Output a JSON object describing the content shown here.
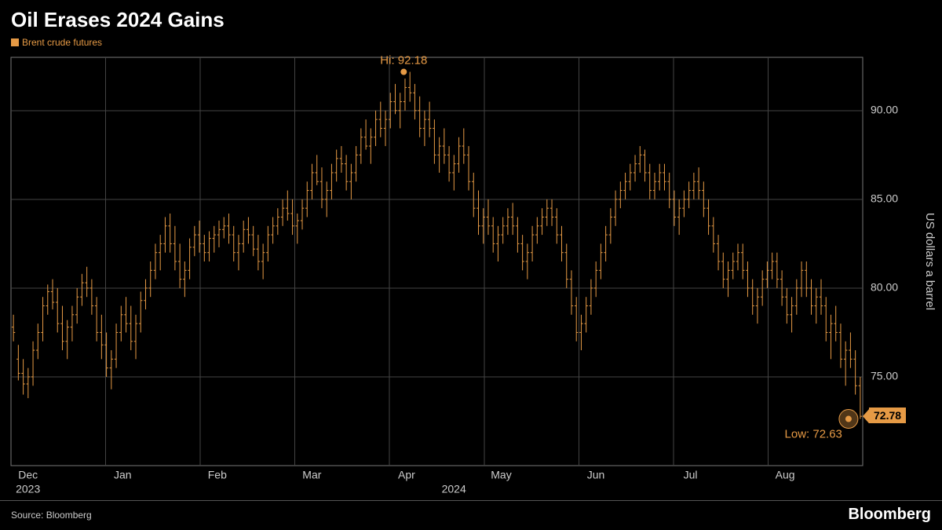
{
  "title": "Oil Erases 2024 Gains",
  "legend": {
    "label": "Brent crude futures",
    "color": "#e69a45"
  },
  "source": "Source: Bloomberg",
  "brand": "Bloomberg",
  "chart": {
    "type": "ohlc",
    "background_color": "#000000",
    "series_color": "#e69a45",
    "grid_color": "#444444",
    "border_color": "#777777",
    "text_color": "#cccccc",
    "ylabel": "US dollars a barrel",
    "y": {
      "min": 70,
      "max": 93,
      "ticks": [
        75,
        80,
        85,
        90
      ]
    },
    "x": {
      "months": [
        "Dec",
        "Jan",
        "Feb",
        "Mar",
        "Apr",
        "May",
        "Jun",
        "Jul",
        "Aug"
      ],
      "year_labels": [
        {
          "text": "2023",
          "at": 0
        },
        {
          "text": "2024",
          "at": 4.5
        }
      ]
    },
    "annotations": {
      "hi": {
        "label": "Hi: 92.18",
        "value": 92.18,
        "x": 4.15
      },
      "low": {
        "label": "Low: 72.63",
        "value": 72.63,
        "x": 8.85
      },
      "current": {
        "label": "72.78",
        "value": 72.78
      }
    },
    "bars": [
      {
        "o": 77.8,
        "h": 78.5,
        "l": 77.0,
        "c": 77.5
      },
      {
        "o": 76.0,
        "h": 76.8,
        "l": 74.8,
        "c": 75.2
      },
      {
        "o": 75.2,
        "h": 76.0,
        "l": 74.0,
        "c": 74.6
      },
      {
        "o": 74.6,
        "h": 75.5,
        "l": 73.8,
        "c": 75.0
      },
      {
        "o": 75.0,
        "h": 77.0,
        "l": 74.5,
        "c": 76.5
      },
      {
        "o": 76.5,
        "h": 78.0,
        "l": 76.0,
        "c": 77.5
      },
      {
        "o": 77.5,
        "h": 79.5,
        "l": 77.0,
        "c": 79.0
      },
      {
        "o": 79.0,
        "h": 80.2,
        "l": 78.5,
        "c": 79.8
      },
      {
        "o": 79.8,
        "h": 80.5,
        "l": 78.8,
        "c": 79.2
      },
      {
        "o": 79.2,
        "h": 80.0,
        "l": 77.5,
        "c": 78.0
      },
      {
        "o": 78.0,
        "h": 79.0,
        "l": 76.5,
        "c": 77.0
      },
      {
        "o": 77.0,
        "h": 78.2,
        "l": 76.0,
        "c": 77.8
      },
      {
        "o": 77.8,
        "h": 79.0,
        "l": 77.0,
        "c": 78.5
      },
      {
        "o": 78.5,
        "h": 80.0,
        "l": 78.0,
        "c": 79.5
      },
      {
        "o": 79.5,
        "h": 80.8,
        "l": 79.0,
        "c": 80.3
      },
      {
        "o": 80.3,
        "h": 81.2,
        "l": 79.5,
        "c": 80.0
      },
      {
        "o": 80.0,
        "h": 80.5,
        "l": 78.5,
        "c": 79.0
      },
      {
        "o": 79.0,
        "h": 79.5,
        "l": 77.0,
        "c": 77.5
      },
      {
        "o": 77.5,
        "h": 78.5,
        "l": 76.0,
        "c": 76.8
      },
      {
        "o": 76.8,
        "h": 77.5,
        "l": 75.0,
        "c": 75.5
      },
      {
        "o": 75.5,
        "h": 76.5,
        "l": 74.3,
        "c": 76.0
      },
      {
        "o": 76.0,
        "h": 78.0,
        "l": 75.5,
        "c": 77.5
      },
      {
        "o": 77.5,
        "h": 79.0,
        "l": 77.0,
        "c": 78.5
      },
      {
        "o": 78.5,
        "h": 79.5,
        "l": 77.5,
        "c": 78.0
      },
      {
        "o": 78.0,
        "h": 79.0,
        "l": 76.5,
        "c": 77.0
      },
      {
        "o": 77.0,
        "h": 78.5,
        "l": 76.0,
        "c": 78.0
      },
      {
        "o": 78.0,
        "h": 79.8,
        "l": 77.5,
        "c": 79.3
      },
      {
        "o": 79.3,
        "h": 80.5,
        "l": 78.8,
        "c": 80.0
      },
      {
        "o": 80.0,
        "h": 81.5,
        "l": 79.5,
        "c": 81.0
      },
      {
        "o": 81.0,
        "h": 82.5,
        "l": 80.5,
        "c": 82.0
      },
      {
        "o": 82.0,
        "h": 83.0,
        "l": 81.0,
        "c": 82.5
      },
      {
        "o": 82.5,
        "h": 84.0,
        "l": 82.0,
        "c": 83.5
      },
      {
        "o": 83.5,
        "h": 84.2,
        "l": 82.0,
        "c": 82.5
      },
      {
        "o": 82.5,
        "h": 83.5,
        "l": 81.0,
        "c": 81.5
      },
      {
        "o": 81.5,
        "h": 82.5,
        "l": 80.0,
        "c": 80.5
      },
      {
        "o": 80.5,
        "h": 81.5,
        "l": 79.5,
        "c": 81.0
      },
      {
        "o": 81.0,
        "h": 82.8,
        "l": 80.5,
        "c": 82.3
      },
      {
        "o": 82.3,
        "h": 83.5,
        "l": 81.8,
        "c": 83.0
      },
      {
        "o": 83.0,
        "h": 83.8,
        "l": 82.0,
        "c": 82.5
      },
      {
        "o": 82.5,
        "h": 83.0,
        "l": 81.5,
        "c": 82.0
      },
      {
        "o": 82.0,
        "h": 83.2,
        "l": 81.5,
        "c": 82.8
      },
      {
        "o": 82.8,
        "h": 83.5,
        "l": 82.0,
        "c": 83.0
      },
      {
        "o": 83.0,
        "h": 83.8,
        "l": 82.3,
        "c": 83.3
      },
      {
        "o": 83.3,
        "h": 84.0,
        "l": 82.8,
        "c": 83.5
      },
      {
        "o": 83.5,
        "h": 84.2,
        "l": 82.5,
        "c": 83.0
      },
      {
        "o": 83.0,
        "h": 83.5,
        "l": 81.5,
        "c": 82.0
      },
      {
        "o": 82.0,
        "h": 83.0,
        "l": 81.0,
        "c": 82.5
      },
      {
        "o": 82.5,
        "h": 83.8,
        "l": 82.0,
        "c": 83.3
      },
      {
        "o": 83.3,
        "h": 84.0,
        "l": 82.5,
        "c": 83.0
      },
      {
        "o": 83.0,
        "h": 83.5,
        "l": 81.8,
        "c": 82.2
      },
      {
        "o": 82.2,
        "h": 83.0,
        "l": 81.0,
        "c": 81.5
      },
      {
        "o": 81.5,
        "h": 82.5,
        "l": 80.5,
        "c": 82.0
      },
      {
        "o": 82.0,
        "h": 83.5,
        "l": 81.5,
        "c": 83.0
      },
      {
        "o": 83.0,
        "h": 84.0,
        "l": 82.5,
        "c": 83.5
      },
      {
        "o": 83.5,
        "h": 84.5,
        "l": 83.0,
        "c": 84.0
      },
      {
        "o": 84.0,
        "h": 85.0,
        "l": 83.5,
        "c": 84.5
      },
      {
        "o": 84.5,
        "h": 85.5,
        "l": 83.8,
        "c": 84.2
      },
      {
        "o": 84.2,
        "h": 85.0,
        "l": 83.0,
        "c": 83.5
      },
      {
        "o": 83.5,
        "h": 84.2,
        "l": 82.5,
        "c": 83.8
      },
      {
        "o": 83.8,
        "h": 85.0,
        "l": 83.3,
        "c": 84.5
      },
      {
        "o": 84.5,
        "h": 86.0,
        "l": 84.0,
        "c": 85.5
      },
      {
        "o": 85.5,
        "h": 87.0,
        "l": 85.0,
        "c": 86.5
      },
      {
        "o": 86.5,
        "h": 87.5,
        "l": 85.8,
        "c": 86.0
      },
      {
        "o": 86.0,
        "h": 86.8,
        "l": 84.5,
        "c": 85.0
      },
      {
        "o": 85.0,
        "h": 86.0,
        "l": 84.0,
        "c": 85.5
      },
      {
        "o": 85.5,
        "h": 87.0,
        "l": 85.0,
        "c": 86.5
      },
      {
        "o": 86.5,
        "h": 87.8,
        "l": 86.0,
        "c": 87.3
      },
      {
        "o": 87.3,
        "h": 88.0,
        "l": 86.5,
        "c": 87.0
      },
      {
        "o": 87.0,
        "h": 87.5,
        "l": 85.5,
        "c": 86.0
      },
      {
        "o": 86.0,
        "h": 87.0,
        "l": 85.0,
        "c": 86.5
      },
      {
        "o": 86.5,
        "h": 88.0,
        "l": 86.0,
        "c": 87.5
      },
      {
        "o": 87.5,
        "h": 89.0,
        "l": 87.0,
        "c": 88.5
      },
      {
        "o": 88.5,
        "h": 89.5,
        "l": 87.8,
        "c": 88.0
      },
      {
        "o": 88.0,
        "h": 89.0,
        "l": 87.0,
        "c": 88.5
      },
      {
        "o": 88.5,
        "h": 90.0,
        "l": 88.0,
        "c": 89.5
      },
      {
        "o": 89.5,
        "h": 90.5,
        "l": 88.5,
        "c": 89.0
      },
      {
        "o": 89.0,
        "h": 90.0,
        "l": 88.0,
        "c": 89.5
      },
      {
        "o": 89.5,
        "h": 91.0,
        "l": 89.0,
        "c": 90.5
      },
      {
        "o": 90.5,
        "h": 91.5,
        "l": 89.8,
        "c": 90.0
      },
      {
        "o": 90.0,
        "h": 91.0,
        "l": 89.0,
        "c": 90.5
      },
      {
        "o": 90.5,
        "h": 91.8,
        "l": 90.0,
        "c": 91.3
      },
      {
        "o": 91.3,
        "h": 92.18,
        "l": 90.5,
        "c": 91.0
      },
      {
        "o": 91.0,
        "h": 91.5,
        "l": 89.5,
        "c": 90.0
      },
      {
        "o": 90.0,
        "h": 90.8,
        "l": 88.5,
        "c": 89.0
      },
      {
        "o": 89.0,
        "h": 90.0,
        "l": 88.0,
        "c": 89.5
      },
      {
        "o": 89.5,
        "h": 90.5,
        "l": 88.5,
        "c": 89.0
      },
      {
        "o": 89.0,
        "h": 89.5,
        "l": 87.0,
        "c": 87.5
      },
      {
        "o": 87.5,
        "h": 88.5,
        "l": 86.5,
        "c": 88.0
      },
      {
        "o": 88.0,
        "h": 89.0,
        "l": 87.0,
        "c": 87.5
      },
      {
        "o": 87.5,
        "h": 88.0,
        "l": 86.0,
        "c": 86.5
      },
      {
        "o": 86.5,
        "h": 87.5,
        "l": 85.5,
        "c": 87.0
      },
      {
        "o": 87.0,
        "h": 88.5,
        "l": 86.5,
        "c": 88.0
      },
      {
        "o": 88.0,
        "h": 89.0,
        "l": 87.0,
        "c": 87.5
      },
      {
        "o": 87.5,
        "h": 88.0,
        "l": 85.5,
        "c": 86.0
      },
      {
        "o": 86.0,
        "h": 86.5,
        "l": 84.0,
        "c": 84.5
      },
      {
        "o": 84.5,
        "h": 85.5,
        "l": 83.0,
        "c": 83.5
      },
      {
        "o": 83.5,
        "h": 84.5,
        "l": 82.5,
        "c": 84.0
      },
      {
        "o": 84.0,
        "h": 85.0,
        "l": 83.0,
        "c": 83.5
      },
      {
        "o": 83.5,
        "h": 84.0,
        "l": 82.0,
        "c": 82.5
      },
      {
        "o": 82.5,
        "h": 83.5,
        "l": 81.5,
        "c": 83.0
      },
      {
        "o": 83.0,
        "h": 84.0,
        "l": 82.5,
        "c": 83.5
      },
      {
        "o": 83.5,
        "h": 84.5,
        "l": 83.0,
        "c": 84.0
      },
      {
        "o": 84.0,
        "h": 84.8,
        "l": 83.0,
        "c": 83.5
      },
      {
        "o": 83.5,
        "h": 84.0,
        "l": 82.0,
        "c": 82.5
      },
      {
        "o": 82.5,
        "h": 83.0,
        "l": 81.0,
        "c": 81.5
      },
      {
        "o": 81.5,
        "h": 82.5,
        "l": 80.5,
        "c": 82.0
      },
      {
        "o": 82.0,
        "h": 83.5,
        "l": 81.5,
        "c": 83.0
      },
      {
        "o": 83.0,
        "h": 84.0,
        "l": 82.5,
        "c": 83.5
      },
      {
        "o": 83.5,
        "h": 84.5,
        "l": 83.0,
        "c": 84.0
      },
      {
        "o": 84.0,
        "h": 85.0,
        "l": 83.5,
        "c": 84.5
      },
      {
        "o": 84.5,
        "h": 85.0,
        "l": 83.5,
        "c": 84.0
      },
      {
        "o": 84.0,
        "h": 84.5,
        "l": 82.5,
        "c": 83.0
      },
      {
        "o": 83.0,
        "h": 83.5,
        "l": 81.5,
        "c": 82.0
      },
      {
        "o": 82.0,
        "h": 82.5,
        "l": 80.0,
        "c": 80.5
      },
      {
        "o": 80.5,
        "h": 81.0,
        "l": 78.5,
        "c": 79.0
      },
      {
        "o": 79.0,
        "h": 79.5,
        "l": 77.0,
        "c": 77.5
      },
      {
        "o": 77.5,
        "h": 78.5,
        "l": 76.5,
        "c": 78.0
      },
      {
        "o": 78.0,
        "h": 79.5,
        "l": 77.5,
        "c": 79.0
      },
      {
        "o": 79.0,
        "h": 80.5,
        "l": 78.5,
        "c": 80.0
      },
      {
        "o": 80.0,
        "h": 81.5,
        "l": 79.5,
        "c": 81.0
      },
      {
        "o": 81.0,
        "h": 82.5,
        "l": 80.5,
        "c": 82.0
      },
      {
        "o": 82.0,
        "h": 83.5,
        "l": 81.5,
        "c": 83.0
      },
      {
        "o": 83.0,
        "h": 84.5,
        "l": 82.5,
        "c": 84.0
      },
      {
        "o": 84.0,
        "h": 85.5,
        "l": 83.5,
        "c": 85.0
      },
      {
        "o": 85.0,
        "h": 86.0,
        "l": 84.5,
        "c": 85.5
      },
      {
        "o": 85.5,
        "h": 86.5,
        "l": 85.0,
        "c": 86.0
      },
      {
        "o": 86.0,
        "h": 87.0,
        "l": 85.5,
        "c": 86.5
      },
      {
        "o": 86.5,
        "h": 87.5,
        "l": 86.0,
        "c": 87.0
      },
      {
        "o": 87.0,
        "h": 88.0,
        "l": 86.5,
        "c": 87.5
      },
      {
        "o": 87.5,
        "h": 87.8,
        "l": 86.0,
        "c": 86.5
      },
      {
        "o": 86.5,
        "h": 87.0,
        "l": 85.0,
        "c": 85.5
      },
      {
        "o": 85.5,
        "h": 86.5,
        "l": 85.0,
        "c": 86.0
      },
      {
        "o": 86.0,
        "h": 87.0,
        "l": 85.5,
        "c": 86.5
      },
      {
        "o": 86.5,
        "h": 87.0,
        "l": 85.5,
        "c": 86.0
      },
      {
        "o": 86.0,
        "h": 86.5,
        "l": 84.5,
        "c": 85.0
      },
      {
        "o": 85.0,
        "h": 85.5,
        "l": 83.5,
        "c": 84.0
      },
      {
        "o": 84.0,
        "h": 85.0,
        "l": 83.0,
        "c": 84.5
      },
      {
        "o": 84.5,
        "h": 85.5,
        "l": 84.0,
        "c": 85.0
      },
      {
        "o": 85.0,
        "h": 86.0,
        "l": 84.5,
        "c": 85.5
      },
      {
        "o": 85.5,
        "h": 86.5,
        "l": 85.0,
        "c": 86.0
      },
      {
        "o": 86.0,
        "h": 86.8,
        "l": 85.0,
        "c": 85.5
      },
      {
        "o": 85.5,
        "h": 86.0,
        "l": 84.0,
        "c": 84.5
      },
      {
        "o": 84.5,
        "h": 85.0,
        "l": 83.0,
        "c": 83.5
      },
      {
        "o": 83.5,
        "h": 84.0,
        "l": 82.0,
        "c": 82.5
      },
      {
        "o": 82.5,
        "h": 83.0,
        "l": 81.0,
        "c": 81.5
      },
      {
        "o": 81.5,
        "h": 82.0,
        "l": 80.0,
        "c": 80.5
      },
      {
        "o": 80.5,
        "h": 81.5,
        "l": 79.5,
        "c": 81.0
      },
      {
        "o": 81.0,
        "h": 82.0,
        "l": 80.5,
        "c": 81.5
      },
      {
        "o": 81.5,
        "h": 82.5,
        "l": 81.0,
        "c": 82.0
      },
      {
        "o": 82.0,
        "h": 82.5,
        "l": 80.5,
        "c": 81.0
      },
      {
        "o": 81.0,
        "h": 81.5,
        "l": 79.5,
        "c": 80.0
      },
      {
        "o": 80.0,
        "h": 80.5,
        "l": 78.5,
        "c": 79.0
      },
      {
        "o": 79.0,
        "h": 80.0,
        "l": 78.0,
        "c": 79.5
      },
      {
        "o": 79.5,
        "h": 81.0,
        "l": 79.0,
        "c": 80.5
      },
      {
        "o": 80.5,
        "h": 81.5,
        "l": 80.0,
        "c": 81.0
      },
      {
        "o": 81.0,
        "h": 82.0,
        "l": 80.5,
        "c": 81.5
      },
      {
        "o": 81.5,
        "h": 82.0,
        "l": 80.0,
        "c": 80.5
      },
      {
        "o": 80.5,
        "h": 81.0,
        "l": 79.0,
        "c": 79.5
      },
      {
        "o": 79.5,
        "h": 80.0,
        "l": 78.0,
        "c": 78.5
      },
      {
        "o": 78.5,
        "h": 79.5,
        "l": 77.5,
        "c": 79.0
      },
      {
        "o": 79.0,
        "h": 80.5,
        "l": 78.5,
        "c": 80.0
      },
      {
        "o": 80.0,
        "h": 81.5,
        "l": 79.5,
        "c": 81.0
      },
      {
        "o": 81.0,
        "h": 81.5,
        "l": 79.5,
        "c": 80.0
      },
      {
        "o": 80.0,
        "h": 80.5,
        "l": 78.5,
        "c": 79.0
      },
      {
        "o": 79.0,
        "h": 80.0,
        "l": 78.0,
        "c": 79.5
      },
      {
        "o": 79.5,
        "h": 80.5,
        "l": 78.5,
        "c": 79.0
      },
      {
        "o": 79.0,
        "h": 79.5,
        "l": 77.0,
        "c": 77.5
      },
      {
        "o": 77.5,
        "h": 78.5,
        "l": 76.0,
        "c": 78.0
      },
      {
        "o": 78.0,
        "h": 79.0,
        "l": 77.0,
        "c": 77.5
      },
      {
        "o": 77.5,
        "h": 78.0,
        "l": 75.5,
        "c": 76.0
      },
      {
        "o": 76.0,
        "h": 77.0,
        "l": 74.5,
        "c": 76.5
      },
      {
        "o": 76.5,
        "h": 77.5,
        "l": 75.5,
        "c": 76.0
      },
      {
        "o": 76.0,
        "h": 76.5,
        "l": 74.0,
        "c": 74.5
      },
      {
        "o": 74.5,
        "h": 75.0,
        "l": 72.63,
        "c": 72.78
      }
    ]
  }
}
